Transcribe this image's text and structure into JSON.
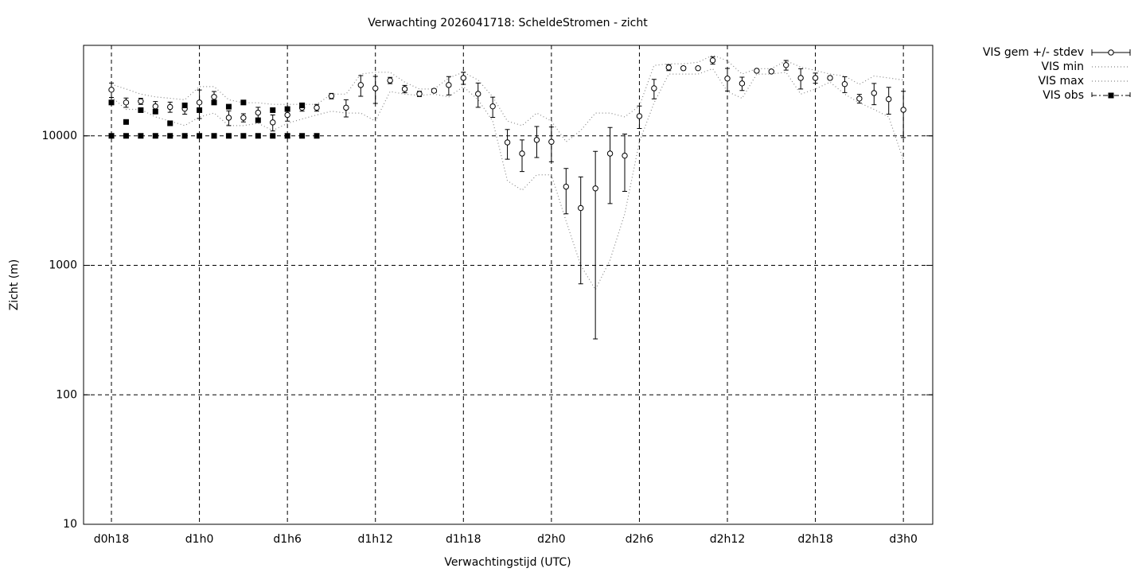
{
  "chart_data": {
    "type": "errorbar_line",
    "title": "Verwachting 2026041718: ScheldeStromen - zicht",
    "xlabel": "Verwachtingstijd (UTC)",
    "ylabel": "Zicht (m)",
    "log_y": true,
    "grid": true,
    "legend": "outside-right-top",
    "xlim": [
      -1.9,
      56
    ],
    "ylim": [
      10,
      50000
    ],
    "xticks": [
      {
        "value": 0,
        "label": "d0h18"
      },
      {
        "value": 6,
        "label": "d1h0"
      },
      {
        "value": 12,
        "label": "d1h6"
      },
      {
        "value": 18,
        "label": "d1h12"
      },
      {
        "value": 24,
        "label": "d1h18"
      },
      {
        "value": 30,
        "label": "d2h0"
      },
      {
        "value": 36,
        "label": "d2h6"
      },
      {
        "value": 42,
        "label": "d2h12"
      },
      {
        "value": 48,
        "label": "d2h18"
      },
      {
        "value": 54,
        "label": "d3h0"
      }
    ],
    "yticks": [
      10,
      100,
      1000,
      10000
    ],
    "x": [
      0,
      1,
      2,
      3,
      4,
      5,
      6,
      7,
      8,
      9,
      10,
      11,
      12,
      13,
      14,
      15,
      16,
      17,
      18,
      19,
      20,
      21,
      22,
      23,
      24,
      25,
      26,
      27,
      28,
      29,
      30,
      31,
      32,
      33,
      34,
      35,
      36,
      37,
      38,
      39,
      40,
      41,
      42,
      43,
      44,
      45,
      46,
      47,
      48,
      49,
      50,
      51,
      52,
      53,
      54
    ],
    "series": [
      {
        "name": "VIS gem +/- stdev",
        "color": "#000000",
        "values": [
          22700,
          18100,
          18500,
          16900,
          16700,
          16200,
          18100,
          20000,
          13800,
          13800,
          15100,
          12700,
          14500,
          16500,
          16500,
          20300,
          16500,
          24700,
          23300,
          26800,
          23000,
          21100,
          22300,
          24700,
          28000,
          21100,
          16900,
          8900,
          7300,
          9300,
          9000,
          4050,
          2770,
          3930,
          7300,
          7030,
          14200,
          23300,
          33700,
          33300,
          33300,
          38300,
          27700,
          25400,
          31800,
          31400,
          35200,
          28000,
          28000,
          28000,
          25100,
          19400,
          21400,
          19200,
          15900
        ],
        "stdev": [
          2900,
          1500,
          1000,
          1500,
          1500,
          1500,
          4500,
          2000,
          1800,
          1000,
          1500,
          1800,
          1500,
          1000,
          1000,
          1000,
          2500,
          4500,
          5500,
          1500,
          1500,
          1000,
          700,
          4000,
          3000,
          4500,
          3000,
          2300,
          2000,
          2500,
          2700,
          1550,
          2050,
          3660,
          4300,
          3300,
          2800,
          4000,
          1800,
          1000,
          800,
          2500,
          5500,
          3000,
          600,
          800,
          3000,
          5000,
          2500,
          800,
          3500,
          1500,
          4000,
          4500,
          6200
        ]
      },
      {
        "name": "VIS min",
        "color": "#888888",
        "values": [
          20000,
          16000,
          16000,
          14000,
          13000,
          12000,
          14000,
          15000,
          12000,
          12000,
          12500,
          11000,
          12500,
          13500,
          14500,
          15500,
          15000,
          15000,
          13000,
          22000,
          21000,
          20500,
          21000,
          20000,
          24000,
          19000,
          13000,
          4500,
          3800,
          5000,
          5000,
          2200,
          1000,
          650,
          1100,
          2500,
          9000,
          18000,
          30000,
          30000,
          30000,
          33000,
          22000,
          19500,
          30000,
          30000,
          31000,
          21000,
          23000,
          26000,
          21000,
          18000,
          16000,
          14000,
          6500
        ]
      },
      {
        "name": "VIS max",
        "color": "#888888",
        "values": [
          25000,
          23000,
          21000,
          20000,
          19500,
          19000,
          24000,
          24000,
          19000,
          18000,
          18000,
          17500,
          17500,
          17500,
          17500,
          21000,
          21000,
          30000,
          31000,
          31000,
          26000,
          23000,
          23000,
          28000,
          31000,
          27000,
          20000,
          13000,
          12000,
          15000,
          13000,
          9000,
          11000,
          15000,
          15000,
          14000,
          17000,
          35000,
          36000,
          36000,
          37000,
          42000,
          38000,
          30000,
          33000,
          33000,
          38000,
          34000,
          32000,
          30000,
          29000,
          25000,
          29000,
          28000,
          27000
        ]
      },
      {
        "name": "VIS obs",
        "color": "#000000",
        "values": [
          18100,
          12800,
          15800,
          15400,
          12500,
          17200,
          15800,
          18100,
          16800,
          18100,
          13200,
          15800,
          16100,
          17200,
          null,
          null,
          null,
          null,
          null,
          null,
          null,
          null,
          null,
          null,
          null,
          null,
          null,
          null,
          null,
          null,
          null,
          null,
          null,
          null,
          null,
          null,
          null,
          null,
          null,
          null,
          null,
          null,
          null,
          null,
          null,
          null,
          null,
          null,
          null,
          null,
          null,
          null,
          null,
          null,
          null
        ],
        "lower": [
          10000,
          10000,
          10000,
          10000,
          10000,
          10000,
          10000,
          10000,
          10000,
          10000,
          10000,
          10000,
          10000,
          10000,
          10000,
          null,
          null,
          null,
          null,
          null,
          null,
          null,
          null,
          null,
          null,
          null,
          null,
          null,
          null,
          null,
          null,
          null,
          null,
          null,
          null,
          null,
          null,
          null,
          null,
          null,
          null,
          null,
          null,
          null,
          null,
          null,
          null,
          null,
          null,
          null,
          null,
          null,
          null,
          null,
          null
        ]
      }
    ]
  }
}
